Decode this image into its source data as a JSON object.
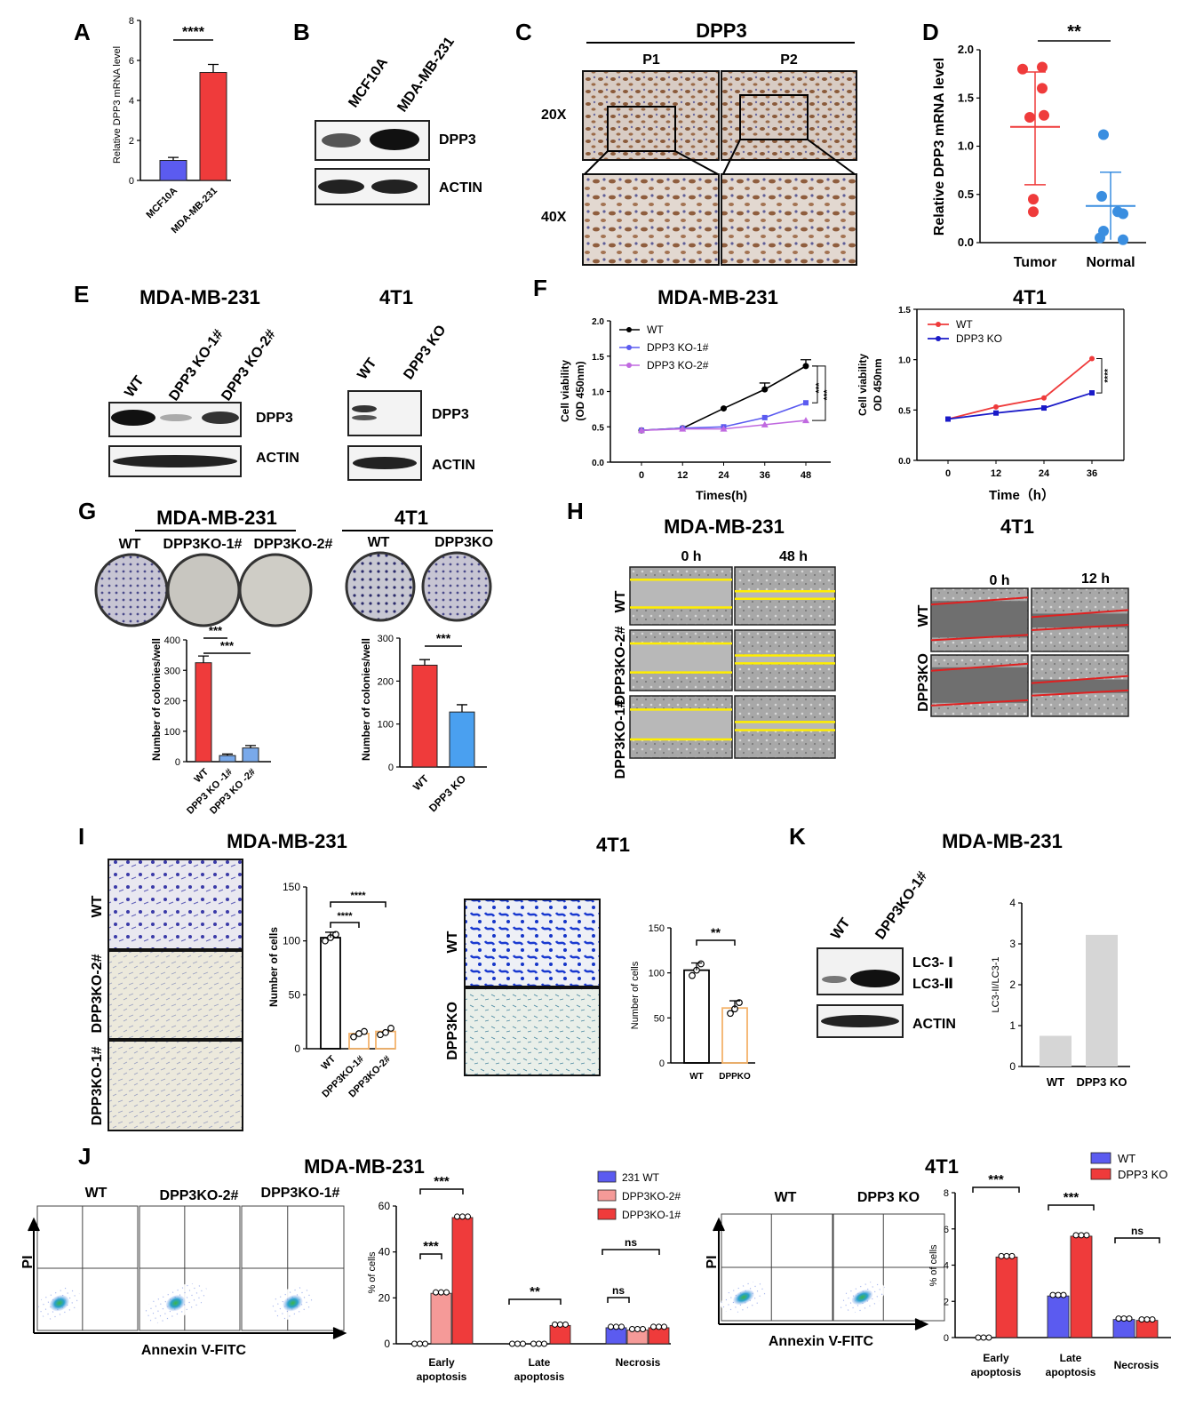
{
  "panels": {
    "A": {
      "letter": "A",
      "ylabel": "Relative DPP3 mRNA level",
      "yticks": [
        "0",
        "2",
        "4",
        "6",
        "8"
      ],
      "categories": [
        "MCF10A",
        "MDA-MB-231"
      ],
      "sig": "****"
    },
    "B": {
      "letter": "B",
      "lanes": [
        "MCF10A",
        "MDA-MB-231"
      ],
      "bands": [
        "DPP3",
        "ACTIN"
      ]
    },
    "C": {
      "letter": "C",
      "title": "DPP3",
      "cols": [
        "P1",
        "P2"
      ],
      "rows": [
        "20X",
        "40X"
      ]
    },
    "D": {
      "letter": "D",
      "ylabel": "Relative DPP3 mRNA level",
      "yticks": [
        "0.0",
        "0.5",
        "1.0",
        "1.5",
        "2.0"
      ],
      "categories": [
        "Tumor",
        "Normal"
      ],
      "sig": "**"
    },
    "E": {
      "letter": "E",
      "left_title": "MDA-MB-231",
      "right_title": "4T1",
      "left_lanes": [
        "WT",
        "DPP3 KO-1#",
        "DPP3 KO-2#"
      ],
      "right_lanes": [
        "WT",
        "DPP3 KO"
      ],
      "bands": [
        "DPP3",
        "ACTIN"
      ]
    },
    "F": {
      "letter": "F",
      "left_title": "MDA-MB-231",
      "right_title": "4T1",
      "ylabel1": "Cell viability",
      "ylabel2": "(OD 450nm)",
      "ylabel2b": "OD 450nm",
      "left_xlabel": "Times(h)",
      "right_xlabel": "Time（h）",
      "left_legend": [
        "WT",
        "DPP3 KO-1#",
        "DPP3 KO-2#"
      ],
      "right_legend": [
        "WT",
        "DPP3 KO"
      ],
      "left_sig": [
        "***",
        "***"
      ],
      "right_sig": "****",
      "left_xticks": [
        "0",
        "12",
        "24",
        "36",
        "48"
      ],
      "left_yticks": [
        "0.0",
        "0.5",
        "1.0",
        "1.5",
        "2.0"
      ],
      "right_xticks": [
        "0",
        "12",
        "24",
        "36"
      ],
      "right_yticks": [
        "0.0",
        "0.5",
        "1.0",
        "1.5"
      ]
    },
    "G": {
      "letter": "G",
      "left_title": "MDA-MB-231",
      "right_title": "4T1",
      "left_plates": [
        "WT",
        "DPP3KO-1#",
        "DPP3KO-2#"
      ],
      "right_plates": [
        "WT",
        "DPP3KO"
      ],
      "ylabel": "Number of colonies/well",
      "left_cats": [
        "WT",
        "DPP3 KO -1#",
        "DPP3 KO -2#"
      ],
      "right_cats": [
        "WT",
        "DPP3 KO"
      ],
      "left_yticks": [
        "0",
        "100",
        "200",
        "300",
        "400"
      ],
      "right_yticks": [
        "0",
        "100",
        "200",
        "300"
      ],
      "left_sig": [
        "***",
        "***"
      ],
      "right_sig": "***"
    },
    "H": {
      "letter": "H",
      "left_title": "MDA-MB-231",
      "right_title": "4T1",
      "left_times": [
        "0 h",
        "48 h"
      ],
      "right_times": [
        "0 h",
        "12 h"
      ],
      "left_rows": [
        "WT",
        "DPP3KO-2#",
        "DPP3KO-1#"
      ],
      "right_rows": [
        "WT",
        "DPP3KO"
      ]
    },
    "I": {
      "letter": "I",
      "left_title": "MDA-MB-231",
      "right_title": "4T1",
      "left_rows": [
        "WT",
        "DPP3KO-2#",
        "DPP3KO-1#"
      ],
      "right_rows": [
        "WT",
        "DPP3KO"
      ],
      "ylabel": "Number of cells",
      "left_cats": [
        "WT",
        "DPP3KO-1#",
        "DPP3KO-2#"
      ],
      "right_cats": [
        "WT",
        "DPPKO"
      ],
      "left_yticks": [
        "0",
        "50",
        "100",
        "150"
      ],
      "right_yticks": [
        "0",
        "50",
        "100",
        "150"
      ],
      "left_sig": [
        "****",
        "****"
      ],
      "right_sig": "**"
    },
    "K": {
      "letter": "K",
      "title": "MDA-MB-231",
      "lanes": [
        "WT",
        "DPP3KO-1#"
      ],
      "bands": [
        "LC3- Ⅰ",
        "LC3-Ⅱ",
        "ACTIN"
      ],
      "ylabel": "LC3-II/LC3-1",
      "yticks": [
        "0",
        "1",
        "2",
        "3",
        "4"
      ],
      "categories": [
        "WT",
        "DPP3 KO"
      ]
    },
    "J": {
      "letter": "J",
      "left_title": "MDA-MB-231",
      "right_title": "4T1",
      "left_flow": [
        "WT",
        "DPP3KO-2#",
        "DPP3KO-1#"
      ],
      "right_flow": [
        "WT",
        "DPP3 KO"
      ],
      "yaxis": "PI",
      "xaxis": "Annexin V-FITC",
      "ylabel": "% of cells",
      "left_legend": [
        "231 WT",
        "DPP3KO-2#",
        "DPP3KO-1#"
      ],
      "right_legend": [
        "WT",
        "DPP3 KO"
      ],
      "groups": [
        [
          "Early",
          "apoptosis"
        ],
        [
          "Late",
          "apoptosis"
        ],
        [
          "Necrosis",
          ""
        ]
      ],
      "left_yticks": [
        "0",
        "20",
        "40",
        "60"
      ],
      "right_yticks": [
        "0",
        "2",
        "4",
        "6",
        "8"
      ],
      "left_sig": [
        "***",
        "***",
        "**",
        "ns",
        "ns"
      ],
      "right_sig": [
        "***",
        "***",
        "ns"
      ]
    }
  },
  "chart_data": [
    {
      "panel": "A",
      "type": "bar",
      "categories": [
        "MCF10A",
        "MDA-MB-231"
      ],
      "values": [
        1.0,
        5.4
      ],
      "errors": [
        0.15,
        0.4
      ],
      "ylabel": "Relative DPP3 mRNA level",
      "ylim": [
        0,
        8
      ]
    },
    {
      "panel": "D",
      "type": "scatter",
      "ylabel": "Relative DPP3 mRNA level",
      "ylim": [
        0,
        2
      ],
      "series": [
        {
          "name": "Tumor",
          "values": [
            1.8,
            1.82,
            1.6,
            1.3,
            1.32,
            0.45,
            0.32
          ]
        },
        {
          "name": "Normal",
          "values": [
            1.12,
            0.48,
            0.32,
            0.3,
            0.12,
            0.05,
            0.03
          ]
        }
      ],
      "means": [
        1.2,
        0.38
      ]
    },
    {
      "panel": "F-left",
      "type": "line",
      "x": [
        0,
        12,
        24,
        36,
        48
      ],
      "xlabel": "Times(h)",
      "ylim": [
        0,
        2
      ],
      "series": [
        {
          "name": "WT",
          "values": [
            0.45,
            0.48,
            0.76,
            1.03,
            1.36
          ]
        },
        {
          "name": "DPP3 KO-1#",
          "values": [
            0.45,
            0.48,
            0.5,
            0.63,
            0.84
          ]
        },
        {
          "name": "DPP3 KO-2#",
          "values": [
            0.45,
            0.47,
            0.47,
            0.53,
            0.59
          ]
        }
      ]
    },
    {
      "panel": "F-right",
      "type": "line",
      "x": [
        0,
        12,
        24,
        36
      ],
      "xlabel": "Time（h）",
      "ylim": [
        0,
        1.5
      ],
      "series": [
        {
          "name": "WT",
          "values": [
            0.41,
            0.53,
            0.62,
            1.01
          ]
        },
        {
          "name": "DPP3 KO",
          "values": [
            0.41,
            0.47,
            0.52,
            0.67
          ]
        }
      ]
    },
    {
      "panel": "G-left",
      "type": "bar",
      "categories": [
        "WT",
        "DPP3 KO -1#",
        "DPP3 KO -2#"
      ],
      "values": [
        325,
        20,
        45
      ],
      "ylim": [
        0,
        400
      ]
    },
    {
      "panel": "G-right",
      "type": "bar",
      "categories": [
        "WT",
        "DPP3 KO"
      ],
      "values": [
        237,
        128
      ],
      "ylim": [
        0,
        300
      ]
    },
    {
      "panel": "I-left",
      "type": "bar",
      "categories": [
        "WT",
        "DPP3KO-1#",
        "DPP3KO-2#"
      ],
      "values": [
        103,
        14,
        16
      ],
      "ylim": [
        0,
        150
      ]
    },
    {
      "panel": "I-right",
      "type": "bar",
      "categories": [
        "WT",
        "DPPKO"
      ],
      "values": [
        103,
        61
      ],
      "ylim": [
        0,
        150
      ]
    },
    {
      "panel": "K",
      "type": "bar",
      "categories": [
        "WT",
        "DPP3 KO"
      ],
      "values": [
        0.75,
        3.22
      ],
      "ylim": [
        0,
        4
      ]
    },
    {
      "panel": "J-left",
      "type": "bar",
      "categories": [
        "Early apoptosis",
        "Late apoptosis",
        "Necrosis"
      ],
      "ylim": [
        0,
        60
      ],
      "series": [
        {
          "name": "231 WT",
          "values": [
            0,
            0,
            7
          ]
        },
        {
          "name": "DPP3KO-2#",
          "values": [
            22,
            0,
            6
          ]
        },
        {
          "name": "DPP3KO-1#",
          "values": [
            55,
            8,
            7
          ]
        }
      ]
    },
    {
      "panel": "J-right",
      "type": "bar",
      "categories": [
        "Early apoptosis",
        "Late apoptosis",
        "Necrosis"
      ],
      "ylim": [
        0,
        8
      ],
      "series": [
        {
          "name": "WT",
          "values": [
            0,
            2.3,
            1.0
          ]
        },
        {
          "name": "DPP3 KO",
          "values": [
            4.45,
            5.6,
            0.95
          ]
        }
      ]
    }
  ],
  "colors": {
    "red": "#ef3b3b",
    "blue": "#5b5bf0",
    "lightblue": "#79a9ea",
    "pink": "#f59a98",
    "purple": "#c06ae0",
    "orange": "#f4b36b",
    "gray": "#d6d6d6",
    "navy": "#1414c8"
  }
}
